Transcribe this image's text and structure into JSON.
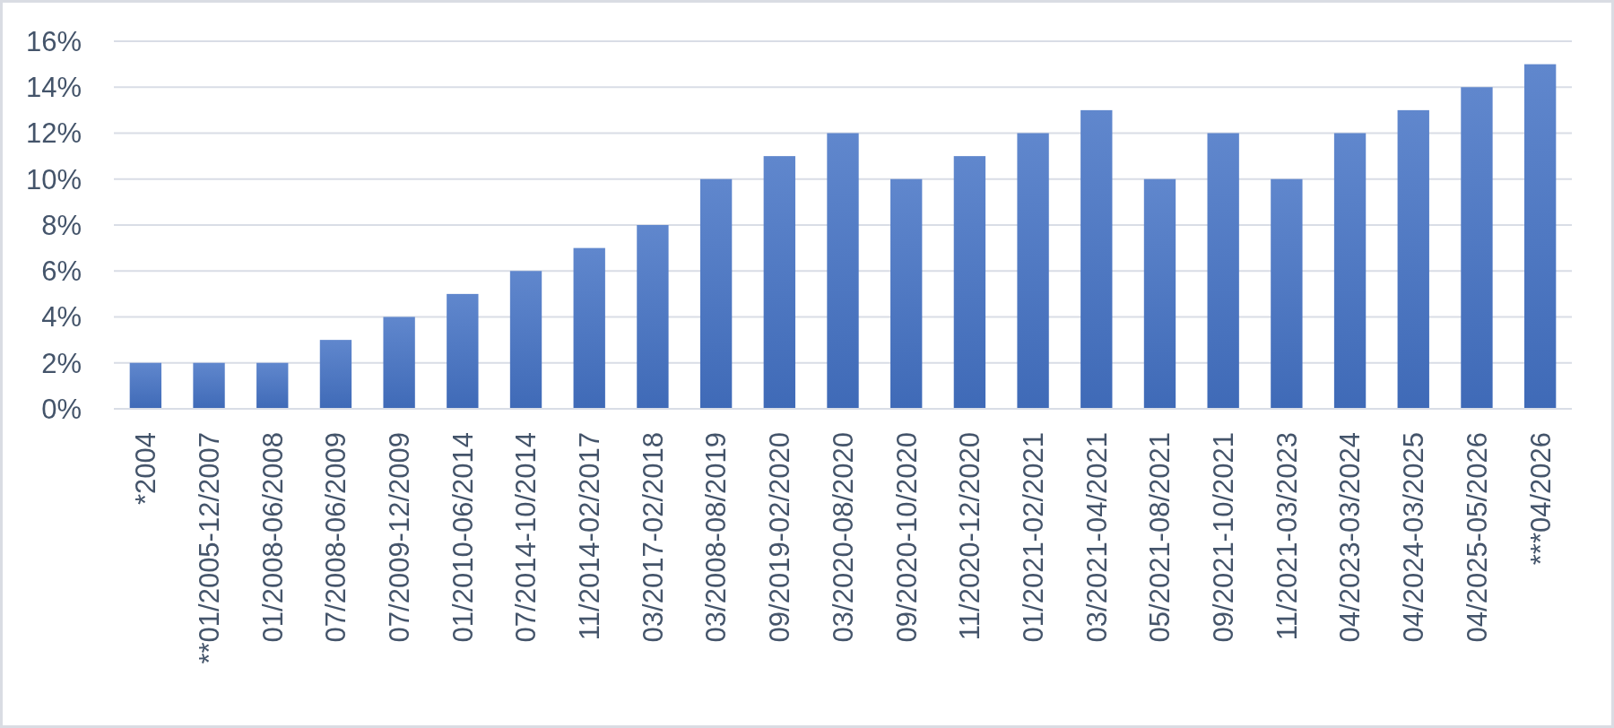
{
  "chart_data": {
    "type": "bar",
    "categories": [
      "*2004",
      "**01/2005-12/2007",
      "01/2008-06/2008",
      "07/2008-06/2009",
      "07/2009-12/2009",
      "01/2010-06/2014",
      "07/2014-10/2014",
      "11/2014-02/2017",
      "03/2017-02/2018",
      "03/2008-08/2019",
      "09/2019-02/2020",
      "03/2020-08/2020",
      "09/2020-10/2020",
      "11/2020-12/2020",
      "01/2021-02/2021",
      "03/2021-04/2021",
      "05/2021-08/2021",
      "09/2021-10/2021",
      "11/2021-03/2023",
      "04/2023-03/2024",
      "04/2024-03/2025",
      "04/2025-05/2026",
      "***04/2026"
    ],
    "values": [
      2,
      2,
      2,
      3,
      4,
      5,
      6,
      7,
      8,
      10,
      11,
      12,
      10,
      11,
      12,
      13,
      10,
      12,
      10,
      12,
      13,
      14,
      15
    ],
    "color": "#4472c4",
    "ylim": [
      0,
      16
    ],
    "yticks": [
      {
        "value": 0,
        "label": "0%"
      },
      {
        "value": 2,
        "label": "2%"
      },
      {
        "value": 4,
        "label": "4%"
      },
      {
        "value": 6,
        "label": "6%"
      },
      {
        "value": 8,
        "label": "8%"
      },
      {
        "value": 10,
        "label": "10%"
      },
      {
        "value": 12,
        "label": "12%"
      },
      {
        "value": 14,
        "label": "14%"
      },
      {
        "value": 16,
        "label": "16%"
      }
    ],
    "grid": "y"
  }
}
